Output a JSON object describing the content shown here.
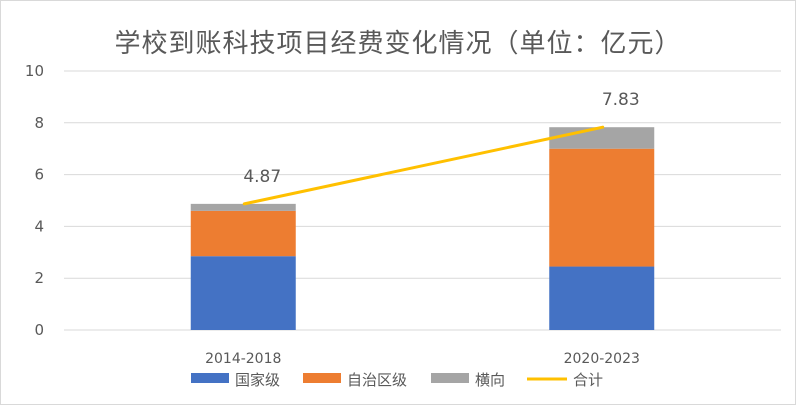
{
  "chart_data": {
    "type": "bar",
    "stacked": true,
    "title": "学校到账科技项目经费变化情况（单位：亿元）",
    "xlabel": "",
    "ylabel": "",
    "categories": [
      "2014-2018",
      "2020-2023"
    ],
    "series": [
      {
        "name": "国家级",
        "kind": "bar",
        "color": "#4472c4",
        "values": [
          2.85,
          2.45
        ]
      },
      {
        "name": "自治区级",
        "kind": "bar",
        "color": "#ed7d31",
        "values": [
          1.75,
          4.55
        ]
      },
      {
        "name": "横向",
        "kind": "bar",
        "color": "#a5a5a5",
        "values": [
          0.27,
          0.83
        ]
      },
      {
        "name": "合计",
        "kind": "line",
        "color": "#ffc000",
        "values": [
          4.87,
          7.83
        ]
      }
    ],
    "data_labels": [
      "4.87",
      "7.83"
    ],
    "y_ticks": [
      "0",
      "2",
      "4",
      "6",
      "8",
      "10"
    ],
    "ylim": [
      0,
      10
    ],
    "grid": true,
    "legend": "bottom"
  }
}
